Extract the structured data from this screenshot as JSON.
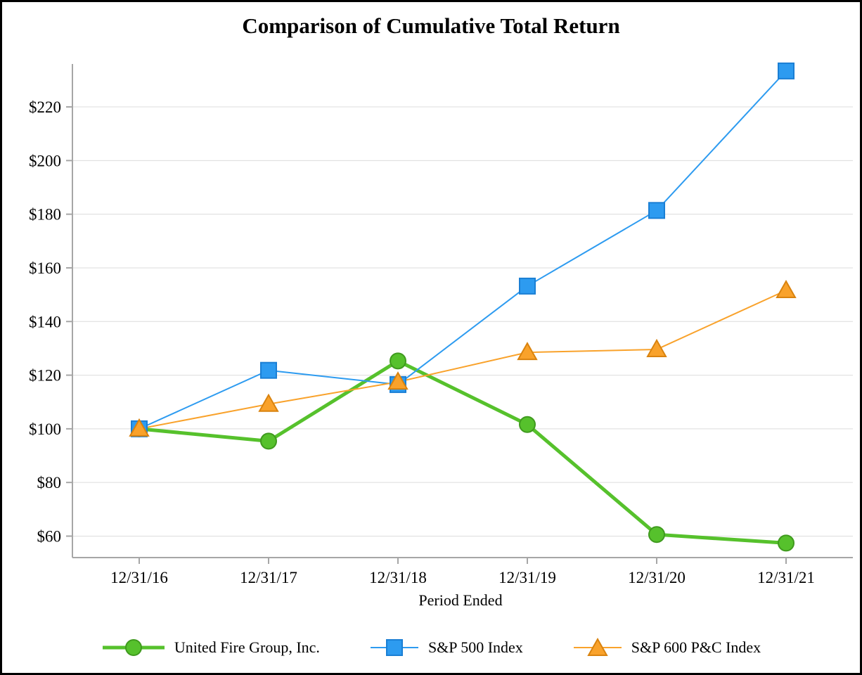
{
  "title": "Comparison of Cumulative Total Return",
  "chart_data": {
    "type": "line",
    "title": "Comparison of Cumulative Total Return",
    "xlabel": "Period Ended",
    "ylabel": "",
    "categories": [
      "12/31/16",
      "12/31/17",
      "12/31/18",
      "12/31/19",
      "12/31/20",
      "12/31/21"
    ],
    "yticks": [
      60,
      80,
      100,
      120,
      140,
      160,
      180,
      200,
      220
    ],
    "ytick_prefix": "$",
    "ylim": [
      52,
      236
    ],
    "grid": true,
    "legend_position": "bottom",
    "colors": {
      "grid": "#DCDCDC",
      "axis": "#A6A6A6",
      "text": "#000000"
    },
    "series": [
      {
        "name": "United Fire Group, Inc.",
        "marker": "circle",
        "color": "#56C12C",
        "edge": "#3F9A1E",
        "line_width": 5,
        "values": [
          100,
          95.4,
          125.3,
          101.6,
          60.6,
          57.4
        ]
      },
      {
        "name": "S&P 500 Index",
        "marker": "square",
        "color": "#2D9BF0",
        "edge": "#1B7FD4",
        "line_width": 2,
        "values": [
          100,
          121.8,
          116.5,
          153.2,
          181.4,
          233.4
        ]
      },
      {
        "name": "S&P 600 P&C Index",
        "marker": "triangle",
        "color": "#F9A22B",
        "edge": "#D9830F",
        "line_width": 2,
        "values": [
          100,
          109.2,
          117.5,
          128.5,
          129.6,
          151.6
        ]
      }
    ]
  }
}
